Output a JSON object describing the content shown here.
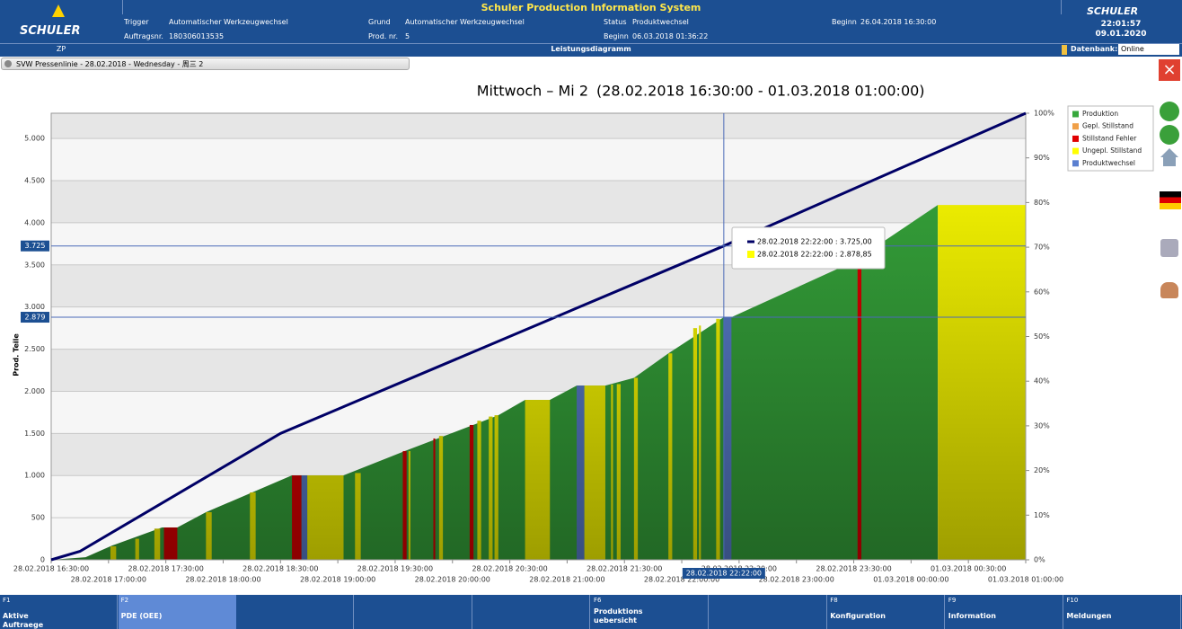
{
  "header": {
    "title": "Schuler Production Information System",
    "logo": "SCHULER",
    "time": "22:01:57",
    "date": "09.01.2020",
    "fields": [
      {
        "label": "Trigger",
        "value": "Automatischer Werkzeugwechsel"
      },
      {
        "label": "Grund",
        "value": "Automatischer Werkzeugwechsel"
      },
      {
        "label": "Status",
        "value": "Produktwechsel"
      },
      {
        "label": "Beginn",
        "value": "26.04.2018 16:30:00"
      },
      {
        "label": "Auftragsnr.",
        "value": "180306013535"
      },
      {
        "label": "Prod. nr.",
        "value": "5"
      },
      {
        "label": "Beginn",
        "value": "06.03.2018 01:36:22"
      }
    ],
    "zp": "ZP",
    "section": "Leistungsdiagramm",
    "db_label": "Datenbank:",
    "db_value": "Online"
  },
  "tab": "SVW Pressenlinie - 28.02.2018 - Wednesday - 周三 2",
  "chart_data": {
    "type": "area",
    "title": "Mittwoch – Mi 2",
    "subtitle": "(28.02.2018 16:30:00 - 01.03.2018 01:00:00)",
    "ylabel": "Prod. Teile",
    "xlim": [
      "28.02.2018 16:30:00",
      "01.03.2018 01:00:00"
    ],
    "xticks": [
      "28.02.2018 16:30:00",
      "28.02.2018 17:00:00",
      "28.02.2018 17:30:00",
      "28.02.2018 18:00:00",
      "28.02.2018 18:30:00",
      "28.02.2018 19:00:00",
      "28.02.2018 19:30:00",
      "28.02.2018 20:00:00",
      "28.02.2018 20:30:00",
      "28.02.2018 21:00:00",
      "28.02.2018 21:30:00",
      "28.02.2018 22:00:00",
      "28.02.2018 22:30:00",
      "28.02.2018 23:00:00",
      "28.02.2018 23:30:00",
      "01.03.2018 00:00:00",
      "01.03.2018 00:30:00",
      "01.03.2018 01:00:00"
    ],
    "ylim": [
      0,
      5300
    ],
    "yticks": [
      0,
      500,
      {
        "value": 1000,
        "label": "1.000"
      },
      {
        "value": 1500,
        "label": "1.500"
      },
      {
        "value": 2000,
        "label": "2.000"
      },
      {
        "value": 2500,
        "label": "2.500"
      },
      {
        "value": 3000,
        "label": "3.000"
      },
      {
        "value": 3500,
        "label": "3.500"
      },
      {
        "value": 4000,
        "label": "4.000"
      },
      {
        "value": 4500,
        "label": "4.500"
      },
      {
        "value": 5000,
        "label": "5.000"
      }
    ],
    "y2lim": [
      0,
      100
    ],
    "y2ticks": [
      {
        "value": 0,
        "label": "0%"
      },
      {
        "value": 10,
        "label": "10%"
      },
      {
        "value": 20,
        "label": "20%"
      },
      {
        "value": 30,
        "label": "30%"
      },
      {
        "value": 40,
        "label": "40%"
      },
      {
        "value": 50,
        "label": "50%"
      },
      {
        "value": 60,
        "label": "60%"
      },
      {
        "value": 70,
        "label": "70%"
      },
      {
        "value": 80,
        "label": "80%"
      },
      {
        "value": 90,
        "label": "90%"
      },
      {
        "value": 100,
        "label": "100%"
      }
    ],
    "grid": true,
    "legend": "right",
    "series": [
      {
        "name": "Produktion",
        "color": "#37a83c",
        "x": [
          "28.02.2018 16:30:00",
          "28.02.2018 16:48:00",
          "28.02.2018 17:02:00",
          "28.02.2018 17:28:00",
          "28.02.2018 17:36:00",
          "28.02.2018 17:51:00",
          "28.02.2018 18:36:00",
          "28.02.2018 19:03:00",
          "28.02.2018 19:35:00",
          "28.02.2018 20:12:00",
          "28.02.2018 20:24:00",
          "28.02.2018 20:38:00",
          "28.02.2018 20:51:00",
          "28.02.2018 21:05:00",
          "28.02.2018 21:20:00",
          "28.02.2018 21:35:00",
          "28.02.2018 21:53:00",
          "28.02.2018 22:22:00",
          "28.02.2018 22:26:00",
          "28.02.2018 23:30:00",
          "01.03.2018 00:14:00"
        ],
        "values": [
          0,
          30,
          170,
          384,
          384,
          565,
          1002,
          1002,
          1290,
          1610,
          1716,
          1898,
          1898,
          2068,
          2068,
          2160,
          2450,
          2879,
          2879,
          3540,
          4211
        ]
      },
      {
        "name": "Gepl. Stillstand",
        "color": "#f0a048",
        "segments": []
      },
      {
        "name": "Stillstand Fehler",
        "color": "#e00000",
        "segments": [
          {
            "start": "28.02.2018 17:29:00",
            "end": "28.02.2018 17:36:00",
            "value": 384
          },
          {
            "start": "28.02.2018 18:36:00",
            "end": "28.02.2018 18:41:00",
            "value": 1002
          },
          {
            "start": "28.02.2018 19:34:00",
            "end": "28.02.2018 19:36:00",
            "value": 1290
          },
          {
            "start": "28.02.2018 19:50:00",
            "end": "28.02.2018 19:51:00",
            "value": 1440
          },
          {
            "start": "28.02.2018 20:09:00",
            "end": "28.02.2018 20:11:00",
            "value": 1600
          },
          {
            "start": "28.02.2018 23:32:00",
            "end": "28.02.2018 23:34:00",
            "value": 3550
          }
        ]
      },
      {
        "name": "Ungepl. Stillstand",
        "color": "#ffff00",
        "segments": [
          {
            "start": "28.02.2018 17:01:00",
            "end": "28.02.2018 17:04:00",
            "value": 160
          },
          {
            "start": "28.02.2018 17:14:00",
            "end": "28.02.2018 17:16:00",
            "value": 250
          },
          {
            "start": "28.02.2018 17:24:00",
            "end": "28.02.2018 17:27:00",
            "value": 370
          },
          {
            "start": "28.02.2018 17:51:00",
            "end": "28.02.2018 17:54:00",
            "value": 565
          },
          {
            "start": "28.02.2018 18:14:00",
            "end": "28.02.2018 18:17:00",
            "value": 800
          },
          {
            "start": "28.02.2018 18:44:00",
            "end": "28.02.2018 19:03:00",
            "value": 1002
          },
          {
            "start": "28.02.2018 19:09:00",
            "end": "28.02.2018 19:12:00",
            "value": 1030
          },
          {
            "start": "28.02.2018 19:37:00",
            "end": "28.02.2018 19:38:00",
            "value": 1290
          },
          {
            "start": "28.02.2018 19:53:00",
            "end": "28.02.2018 19:55:00",
            "value": 1470
          },
          {
            "start": "28.02.2018 20:13:00",
            "end": "28.02.2018 20:15:00",
            "value": 1650
          },
          {
            "start": "28.02.2018 20:19:00",
            "end": "28.02.2018 20:21:00",
            "value": 1700
          },
          {
            "start": "28.02.2018 20:22:00",
            "end": "28.02.2018 20:24:00",
            "value": 1716
          },
          {
            "start": "28.02.2018 20:38:00",
            "end": "28.02.2018 20:51:00",
            "value": 1898
          },
          {
            "start": "28.02.2018 21:09:00",
            "end": "28.02.2018 21:20:00",
            "value": 2068
          },
          {
            "start": "28.02.2018 21:23:00",
            "end": "28.02.2018 21:24:00",
            "value": 2080
          },
          {
            "start": "28.02.2018 21:26:00",
            "end": "28.02.2018 21:28:00",
            "value": 2085
          },
          {
            "start": "28.02.2018 21:35:00",
            "end": "28.02.2018 21:37:00",
            "value": 2160
          },
          {
            "start": "28.02.2018 21:53:00",
            "end": "28.02.2018 21:55:00",
            "value": 2450
          },
          {
            "start": "28.02.2018 22:06:00",
            "end": "28.02.2018 22:08:00",
            "value": 2750
          },
          {
            "start": "28.02.2018 22:09:00",
            "end": "28.02.2018 22:10:00",
            "value": 2780
          },
          {
            "start": "28.02.2018 22:18:00",
            "end": "28.02.2018 22:20:00",
            "value": 2860
          },
          {
            "start": "01.03.2018 00:14:00",
            "end": "01.03.2018 01:00:00",
            "value": 4211
          }
        ]
      },
      {
        "name": "Produktwechsel",
        "color": "#5a7fd0",
        "segments": [
          {
            "start": "28.02.2018 18:41:00",
            "end": "28.02.2018 18:44:00",
            "value": 1002
          },
          {
            "start": "28.02.2018 21:05:00",
            "end": "28.02.2018 21:09:00",
            "value": 2068
          },
          {
            "start": "28.02.2018 22:22:00",
            "end": "28.02.2018 22:26:00",
            "value": 2879
          }
        ]
      }
    ],
    "target": {
      "color": "#000066",
      "x": [
        "28.02.2018 16:30:00",
        "28.02.2018 16:45:00",
        "28.02.2018 18:30:00",
        "28.02.2018 22:22:00",
        "01.03.2018 01:00:00"
      ],
      "values": [
        0,
        100,
        1500,
        3725,
        5300
      ]
    },
    "crosshair": {
      "x": "28.02.2018 22:22:00",
      "y": [
        {
          "value": 3725,
          "label": "3.725"
        },
        {
          "value": 2879,
          "label": "2.879"
        }
      ]
    },
    "tooltip": [
      {
        "text": "28.02.2018 22:22:00 : 3.725,00",
        "color": "#000066"
      },
      {
        "text": "28.02.2018 22:22:00 : 2.878,85",
        "color": "#ffff00"
      }
    ]
  },
  "footer": [
    {
      "key": "F1",
      "label": "Aktive Auftraege"
    },
    {
      "key": "F2",
      "label": "PDE (OEE)"
    },
    {
      "key": "F6",
      "label": "Produktions uebersicht"
    },
    {
      "key": "F8",
      "label": "Konfiguration"
    },
    {
      "key": "F9",
      "label": "Information"
    },
    {
      "key": "F10",
      "label": "Meldungen"
    }
  ]
}
